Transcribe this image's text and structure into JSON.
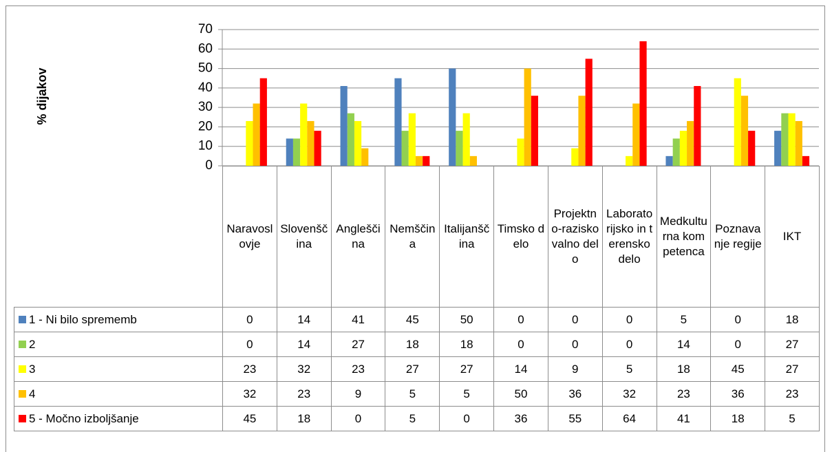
{
  "chart_data": {
    "type": "bar",
    "ylabel": "% dijakov",
    "categories": [
      "Naravoslovje",
      "Slovenščina",
      "Angleščina",
      "Nemščina",
      "Italijanščina",
      "Timsko delo",
      "Projektno-raziskovalno delo",
      "Laboratorijsko in terensko delo",
      "Medkulturna kompetenca",
      "Poznavanje regije",
      "IKT"
    ],
    "series": [
      {
        "name": "1 - Ni bilo sprememb",
        "color": "#4f81bd",
        "values": [
          0,
          14,
          41,
          45,
          50,
          0,
          0,
          0,
          5,
          0,
          18
        ]
      },
      {
        "name": "2",
        "color": "#92d050",
        "values": [
          0,
          14,
          27,
          18,
          18,
          0,
          0,
          0,
          14,
          0,
          27
        ]
      },
      {
        "name": "3",
        "color": "#ffff00",
        "values": [
          23,
          32,
          23,
          27,
          27,
          14,
          9,
          5,
          18,
          45,
          27
        ]
      },
      {
        "name": "4",
        "color": "#ffc000",
        "values": [
          32,
          23,
          9,
          5,
          5,
          50,
          36,
          32,
          23,
          36,
          23
        ]
      },
      {
        "name": "5 - Močno izboljšanje",
        "color": "#ff0000",
        "values": [
          45,
          18,
          0,
          5,
          0,
          36,
          55,
          64,
          41,
          18,
          5
        ]
      }
    ],
    "ylim": [
      0,
      70
    ],
    "yticks": [
      0,
      10,
      20,
      30,
      40,
      50,
      60,
      70
    ],
    "grid": true
  }
}
